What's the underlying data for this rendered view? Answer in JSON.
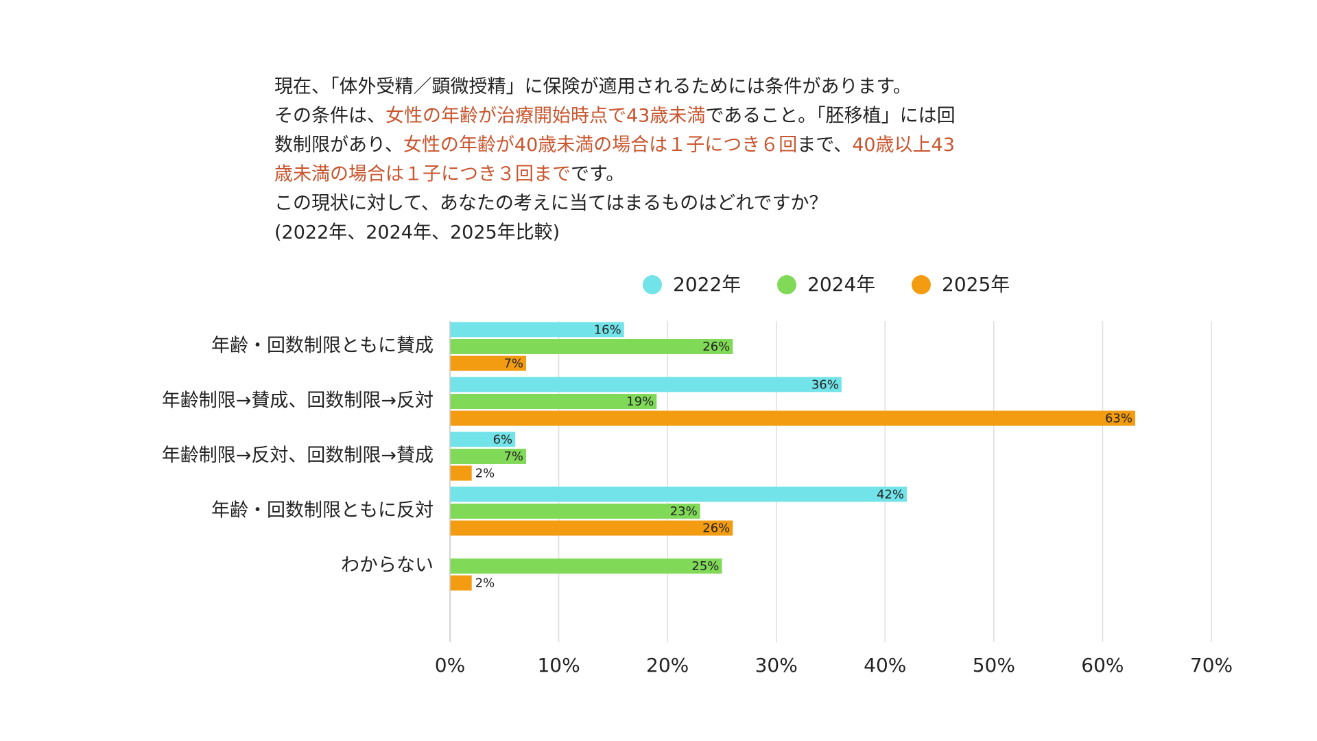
{
  "chart_data": {
    "type": "bar",
    "orientation": "horizontal",
    "description": [
      [
        {
          "text": "現在、「体外受精／顕微授精」に保険が適用されるためには条件があります。",
          "color": "#222222"
        }
      ],
      [
        {
          "text": "その条件は、",
          "color": "#222222"
        },
        {
          "text": "女性の年齢が治療開始時点で43歳未満",
          "color": "#c9552e"
        },
        {
          "text": "であること。「胚移植」には回",
          "color": "#222222"
        }
      ],
      [
        {
          "text": "数制限があり、",
          "color": "#222222"
        },
        {
          "text": "女性の年齢が40歳未満の場合は１子につき６回",
          "color": "#c9552e"
        },
        {
          "text": "まで、",
          "color": "#222222"
        },
        {
          "text": "40歳以上43",
          "color": "#c9552e"
        }
      ],
      [
        {
          "text": "歳未満の場合は１子につき３回まで",
          "color": "#c9552e"
        },
        {
          "text": "です。",
          "color": "#222222"
        }
      ],
      [
        {
          "text": "この現状に対して、あなたの考えに当てはまるものはどれですか？",
          "color": "#222222"
        }
      ],
      [
        {
          "text": "(2022年、2024年、2025年比較)",
          "color": "#222222"
        }
      ]
    ],
    "categories": [
      "年齢・回数制限ともに賛成",
      "年齢制限→賛成、回数制限→反対",
      "年齢制限→反対、回数制限→賛成",
      "年齢・回数制限ともに反対",
      "わからない"
    ],
    "series": [
      {
        "name": "2022年",
        "color": "#72e3e8",
        "values": [
          16,
          36,
          6,
          42,
          null
        ],
        "value_labels": [
          "16%",
          "36%",
          "6%",
          "42%",
          null
        ]
      },
      {
        "name": "2024年",
        "color": "#80d957",
        "values": [
          26,
          19,
          7,
          23,
          25
        ],
        "value_labels": [
          "26%",
          "19%",
          "7%",
          "23%",
          "25%"
        ]
      },
      {
        "name": "2025年",
        "color": "#f39c12",
        "values": [
          7,
          63,
          2,
          26,
          2
        ],
        "value_labels": [
          "7%",
          "63%",
          "2%",
          "26%",
          "2%"
        ]
      }
    ],
    "xlim": [
      0,
      70
    ],
    "xticks": [
      {
        "value": 0,
        "label": "0%"
      },
      {
        "value": 10,
        "label": "10%"
      },
      {
        "value": 20,
        "label": "20%"
      },
      {
        "value": 30,
        "label": "30%"
      },
      {
        "value": 40,
        "label": "40%"
      },
      {
        "value": 50,
        "label": "50%"
      },
      {
        "value": 60,
        "label": "60%"
      },
      {
        "value": 70,
        "label": "70%"
      }
    ],
    "grid": true,
    "legend": "top"
  }
}
